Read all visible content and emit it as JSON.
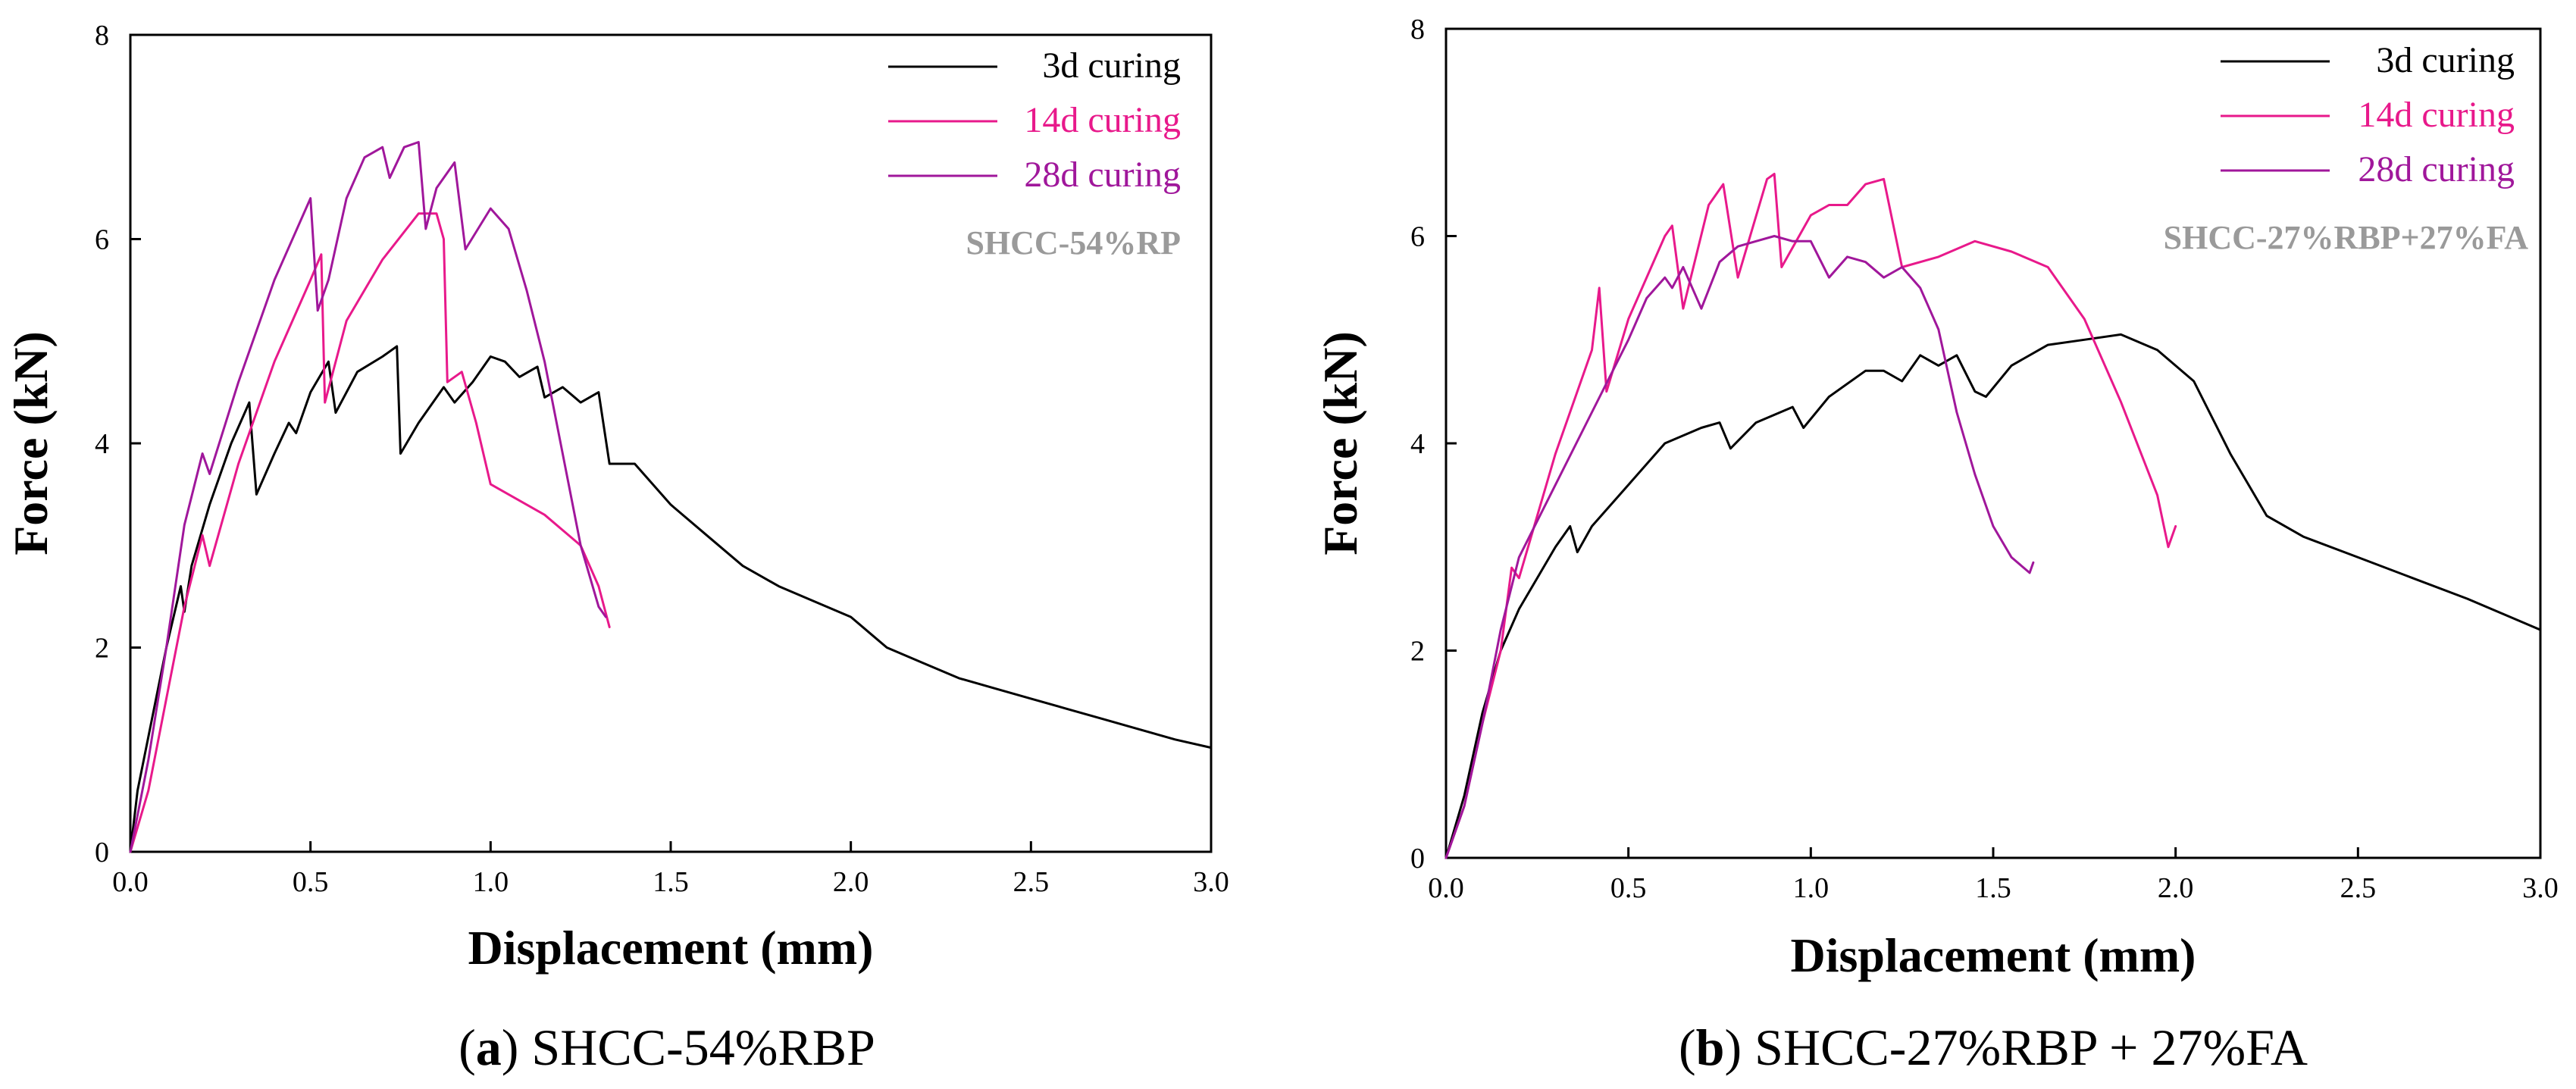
{
  "chart_data": [
    {
      "type": "line",
      "panel": "a",
      "caption_letter": "a",
      "caption_text": "SHCC-54%RBP",
      "annotation": "SHCC-54%RP",
      "xlabel": "Displacement (mm)",
      "ylabel": "Force (kN)",
      "xlim": [
        0,
        3.0
      ],
      "ylim": [
        0,
        8
      ],
      "xticks": [
        "0.0",
        "0.5",
        "1.0",
        "1.5",
        "2.0",
        "2.5",
        "3.0"
      ],
      "yticks": [
        "0",
        "2",
        "4",
        "6",
        "8"
      ],
      "legend_position": "top-right",
      "series": [
        {
          "name": "3d curing",
          "color": "#000000",
          "x": [
            0,
            0.02,
            0.06,
            0.1,
            0.14,
            0.15,
            0.17,
            0.22,
            0.28,
            0.33,
            0.35,
            0.4,
            0.44,
            0.46,
            0.5,
            0.55,
            0.57,
            0.63,
            0.7,
            0.74,
            0.75,
            0.8,
            0.87,
            0.9,
            0.95,
            1.0,
            1.04,
            1.08,
            1.13,
            1.15,
            1.2,
            1.25,
            1.3,
            1.33,
            1.4,
            1.5,
            1.6,
            1.7,
            1.8,
            1.9,
            2.0,
            2.05,
            2.1,
            2.2,
            2.3,
            2.4,
            2.5,
            2.6,
            2.7,
            2.8,
            2.9,
            3.0
          ],
          "values": [
            0,
            0.6,
            1.3,
            2.0,
            2.6,
            2.35,
            2.8,
            3.4,
            4.0,
            4.4,
            3.5,
            3.9,
            4.2,
            4.1,
            4.5,
            4.8,
            4.3,
            4.7,
            4.85,
            4.95,
            3.9,
            4.2,
            4.55,
            4.4,
            4.6,
            4.85,
            4.8,
            4.65,
            4.75,
            4.45,
            4.55,
            4.4,
            4.5,
            3.8,
            3.8,
            3.4,
            3.1,
            2.8,
            2.6,
            2.45,
            2.3,
            2.15,
            2.0,
            1.85,
            1.7,
            1.6,
            1.5,
            1.4,
            1.3,
            1.2,
            1.1,
            1.02
          ]
        },
        {
          "name": "14d curing",
          "color": "#e8198b",
          "x": [
            0,
            0.05,
            0.1,
            0.15,
            0.2,
            0.22,
            0.3,
            0.4,
            0.5,
            0.53,
            0.54,
            0.6,
            0.7,
            0.8,
            0.85,
            0.87,
            0.88,
            0.92,
            0.96,
            1.0,
            1.05,
            1.15,
            1.25,
            1.3,
            1.33
          ],
          "values": [
            0,
            0.6,
            1.5,
            2.4,
            3.1,
            2.8,
            3.8,
            4.8,
            5.6,
            5.85,
            4.4,
            5.2,
            5.8,
            6.25,
            6.25,
            6.0,
            4.6,
            4.7,
            4.2,
            3.6,
            3.5,
            3.3,
            3.0,
            2.6,
            2.2
          ]
        },
        {
          "name": "28d curing",
          "color": "#a0179b",
          "x": [
            0,
            0.05,
            0.1,
            0.15,
            0.2,
            0.22,
            0.3,
            0.4,
            0.5,
            0.52,
            0.55,
            0.6,
            0.65,
            0.7,
            0.72,
            0.76,
            0.8,
            0.82,
            0.85,
            0.9,
            0.93,
            1.0,
            1.05,
            1.1,
            1.15,
            1.2,
            1.25,
            1.3,
            1.32
          ],
          "values": [
            0,
            0.9,
            2.0,
            3.2,
            3.9,
            3.7,
            4.6,
            5.6,
            6.4,
            5.3,
            5.6,
            6.4,
            6.8,
            6.9,
            6.6,
            6.9,
            6.95,
            6.1,
            6.5,
            6.75,
            5.9,
            6.3,
            6.1,
            5.5,
            4.8,
            3.9,
            3.0,
            2.4,
            2.3
          ]
        }
      ]
    },
    {
      "type": "line",
      "panel": "b",
      "caption_letter": "b",
      "caption_text": "SHCC-27%RBP + 27%FA",
      "annotation": "SHCC-27%RBP+27%FA",
      "xlabel": "Displacement (mm)",
      "ylabel": "Force (kN)",
      "xlim": [
        0,
        3.0
      ],
      "ylim": [
        0,
        8
      ],
      "xticks": [
        "0.0",
        "0.5",
        "1.0",
        "1.5",
        "2.0",
        "2.5",
        "3.0"
      ],
      "yticks": [
        "0",
        "2",
        "4",
        "6",
        "8"
      ],
      "legend_position": "top-right",
      "series": [
        {
          "name": "3d curing",
          "color": "#000000",
          "x": [
            0,
            0.05,
            0.1,
            0.15,
            0.2,
            0.3,
            0.34,
            0.36,
            0.4,
            0.5,
            0.6,
            0.7,
            0.75,
            0.78,
            0.85,
            0.95,
            0.98,
            1.05,
            1.15,
            1.2,
            1.25,
            1.3,
            1.35,
            1.4,
            1.45,
            1.48,
            1.55,
            1.65,
            1.75,
            1.85,
            1.95,
            2.05,
            2.15,
            2.25,
            2.35,
            2.5,
            2.65,
            2.8,
            2.9,
            3.0
          ],
          "values": [
            0,
            0.6,
            1.4,
            2.0,
            2.4,
            3.0,
            3.2,
            2.95,
            3.2,
            3.6,
            4.0,
            4.15,
            4.2,
            3.95,
            4.2,
            4.35,
            4.15,
            4.45,
            4.7,
            4.7,
            4.6,
            4.85,
            4.75,
            4.85,
            4.5,
            4.45,
            4.75,
            4.95,
            5.0,
            5.05,
            4.9,
            4.6,
            3.9,
            3.3,
            3.1,
            2.9,
            2.7,
            2.5,
            2.35,
            2.2
          ]
        },
        {
          "name": "14d curing",
          "color": "#e8198b",
          "x": [
            0,
            0.05,
            0.1,
            0.15,
            0.18,
            0.2,
            0.3,
            0.4,
            0.42,
            0.44,
            0.5,
            0.6,
            0.62,
            0.65,
            0.72,
            0.76,
            0.8,
            0.88,
            0.9,
            0.92,
            1.0,
            1.05,
            1.1,
            1.15,
            1.2,
            1.25,
            1.35,
            1.45,
            1.55,
            1.65,
            1.75,
            1.85,
            1.95,
            1.98,
            2.0
          ],
          "values": [
            0,
            0.5,
            1.3,
            2.0,
            2.8,
            2.7,
            3.9,
            4.9,
            5.5,
            4.5,
            5.2,
            6.0,
            6.1,
            5.3,
            6.3,
            6.5,
            5.6,
            6.55,
            6.6,
            5.7,
            6.2,
            6.3,
            6.3,
            6.5,
            6.55,
            5.7,
            5.8,
            5.95,
            5.85,
            5.7,
            5.2,
            4.4,
            3.5,
            3.0,
            3.2
          ]
        },
        {
          "name": "28d curing",
          "color": "#a0179b",
          "x": [
            0,
            0.05,
            0.1,
            0.15,
            0.2,
            0.3,
            0.4,
            0.5,
            0.55,
            0.6,
            0.62,
            0.65,
            0.7,
            0.75,
            0.8,
            0.85,
            0.9,
            0.95,
            1.0,
            1.05,
            1.1,
            1.15,
            1.2,
            1.25,
            1.3,
            1.35,
            1.4,
            1.45,
            1.5,
            1.55,
            1.6,
            1.61
          ],
          "values": [
            0,
            0.5,
            1.3,
            2.2,
            2.9,
            3.6,
            4.3,
            5.0,
            5.4,
            5.6,
            5.5,
            5.7,
            5.3,
            5.75,
            5.9,
            5.95,
            6.0,
            5.95,
            5.95,
            5.6,
            5.8,
            5.75,
            5.6,
            5.7,
            5.5,
            5.1,
            4.3,
            3.7,
            3.2,
            2.9,
            2.75,
            2.85
          ]
        }
      ]
    }
  ]
}
